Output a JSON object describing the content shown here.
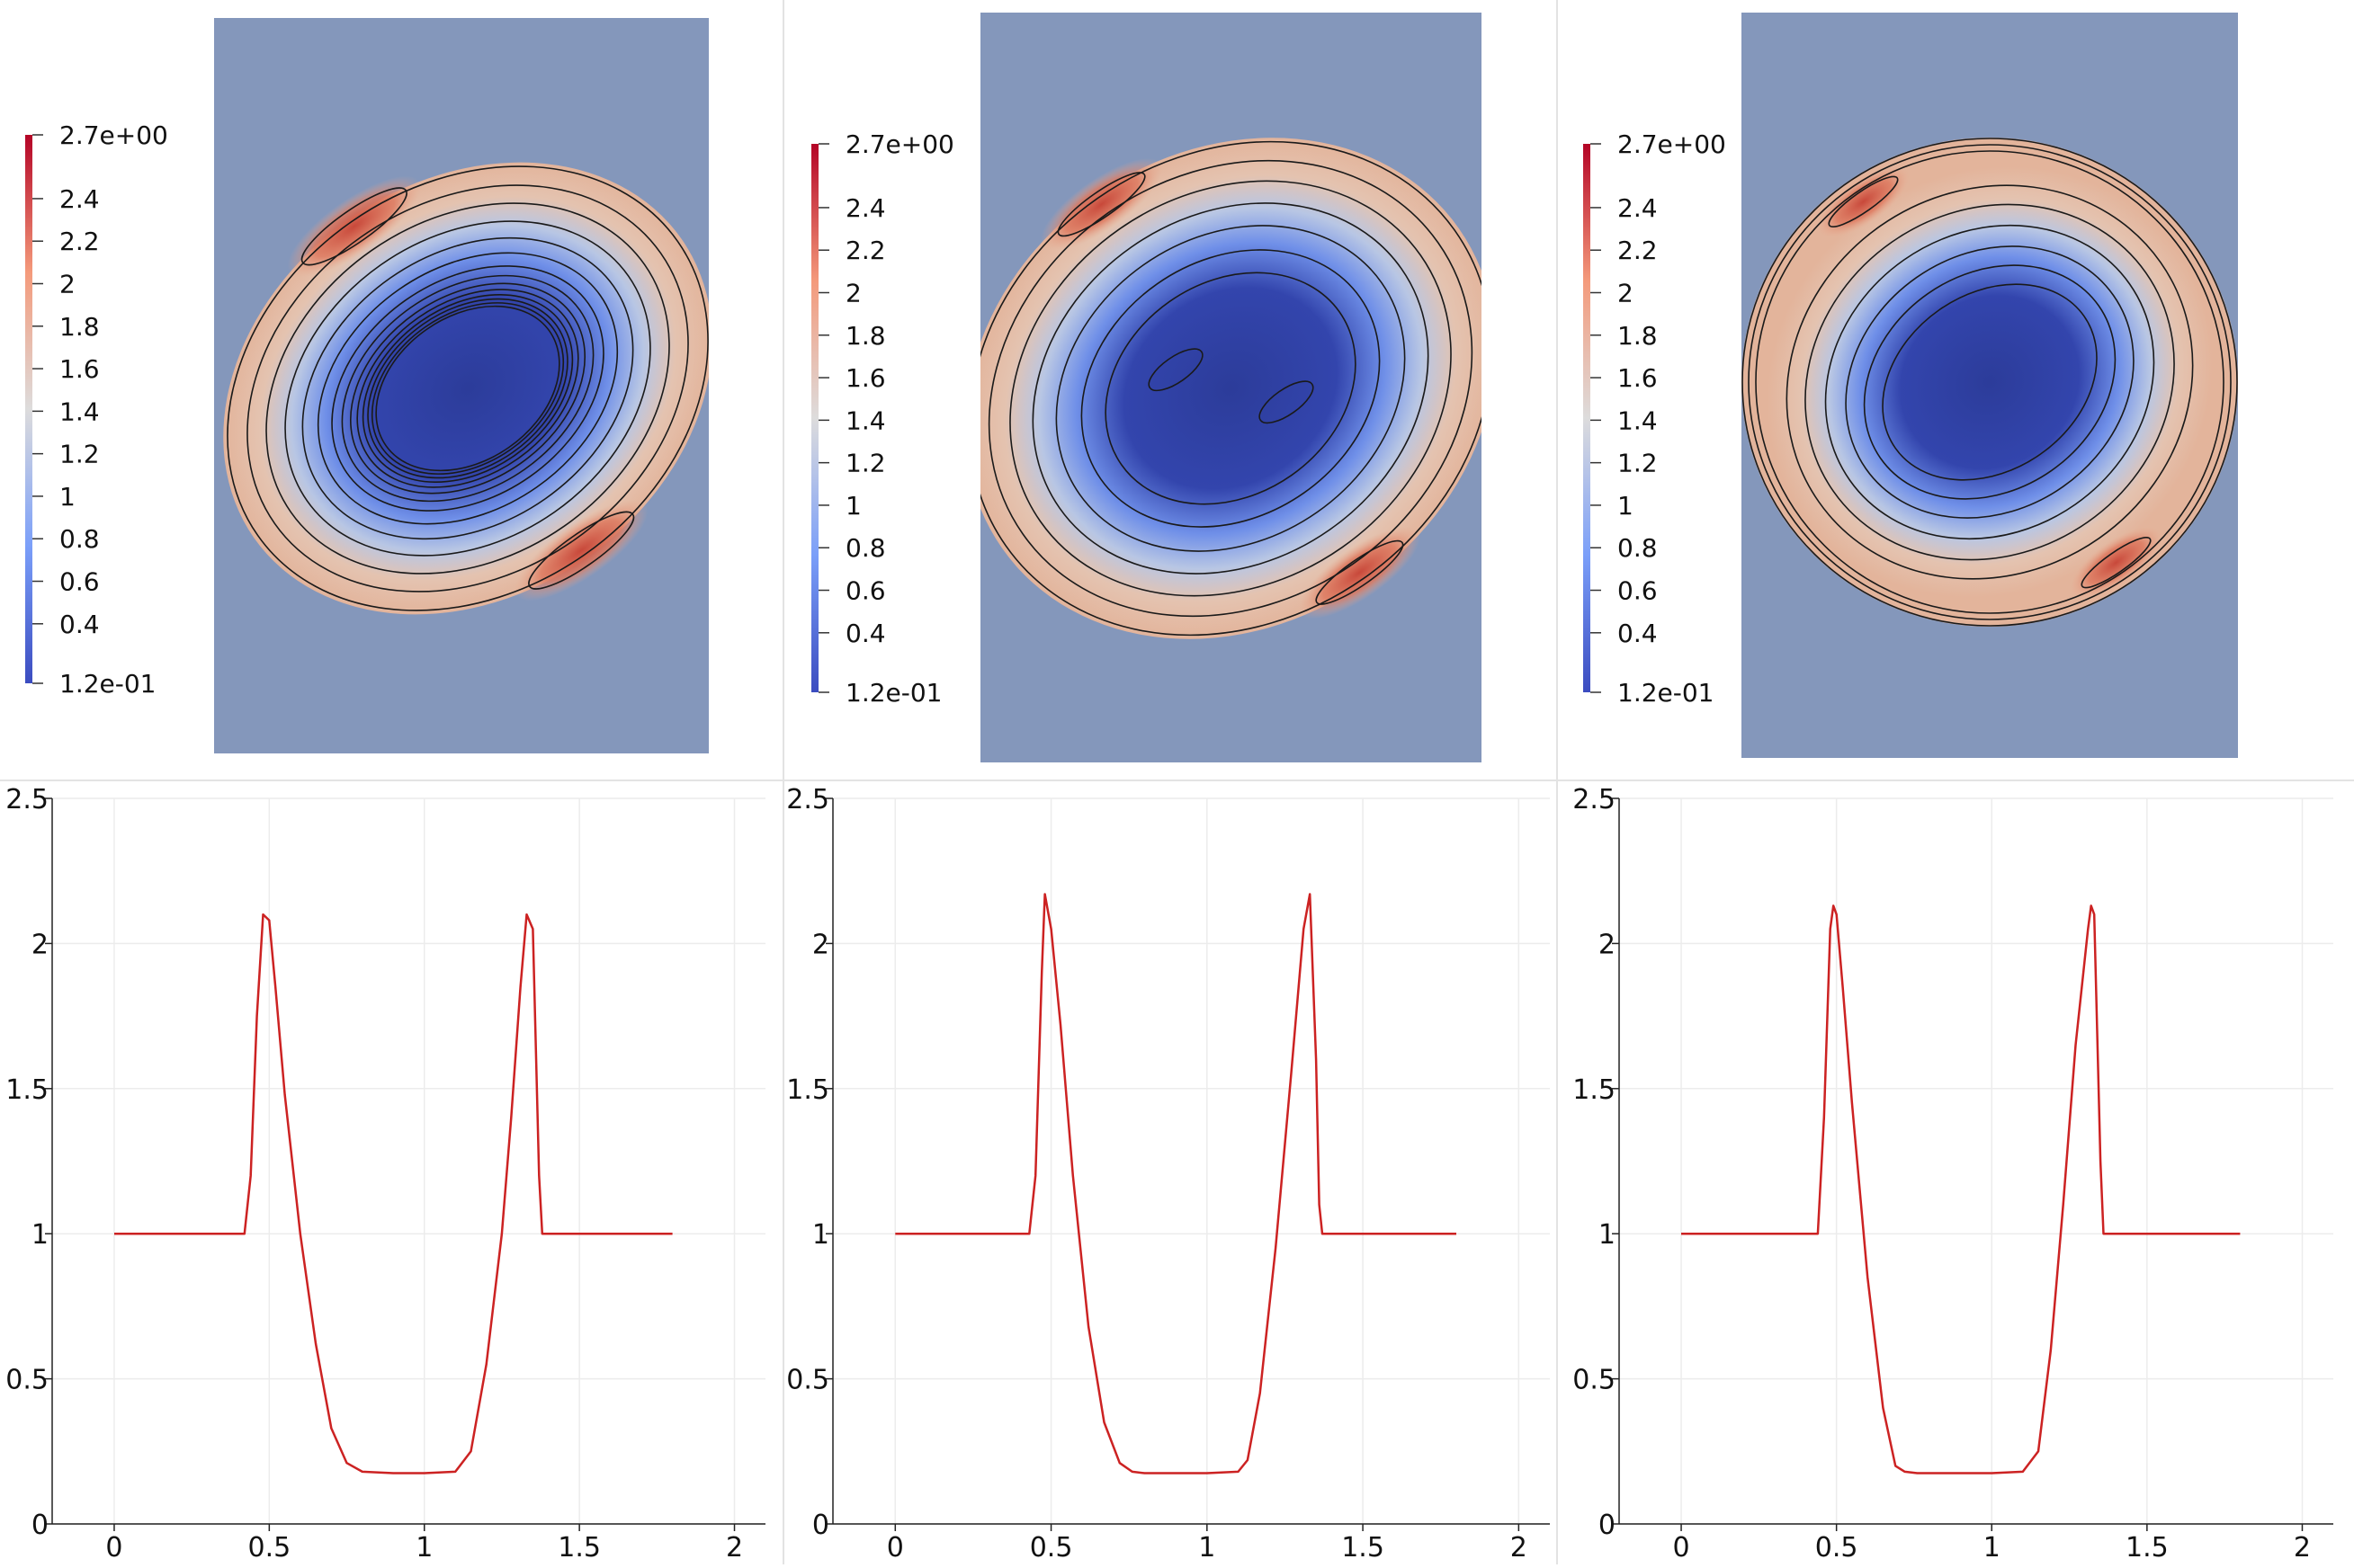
{
  "colorbar": {
    "max_label": "2.7e+00",
    "min_label": "1.2e-01",
    "ticks": [
      "2.4",
      "2.2",
      "2",
      "1.8",
      "1.6",
      "1.4",
      "1.2",
      "1",
      "0.8",
      "0.6",
      "0.4"
    ],
    "tick_values": [
      2.4,
      2.2,
      2.0,
      1.8,
      1.6,
      1.4,
      1.2,
      1.0,
      0.8,
      0.6,
      0.4
    ],
    "range": [
      0.12,
      2.7
    ],
    "colormap": "coolwarm",
    "colors": {
      "low": "#3b4cc0",
      "mid": "#dddddd",
      "high": "#b40426",
      "background": "#8497bb"
    }
  },
  "chart_data": [
    {
      "type": "line",
      "panel": "bottom-left",
      "xlim": [
        -0.2,
        2.1
      ],
      "ylim": [
        0,
        2.5
      ],
      "x_ticks": [
        "0",
        "0.5",
        "1",
        "1.5",
        "2"
      ],
      "y_ticks": [
        "0",
        "0.5",
        "1",
        "1.5",
        "2",
        "2.5"
      ],
      "grid": true,
      "line_color": "#cc2222",
      "series": [
        {
          "x": [
            0.0,
            0.42,
            0.44,
            0.46,
            0.48,
            0.5,
            0.52,
            0.55,
            0.6,
            0.65,
            0.7,
            0.75,
            0.8,
            0.9,
            1.0,
            1.1,
            1.15,
            1.2,
            1.25,
            1.28,
            1.31,
            1.33,
            1.35,
            1.37,
            1.38,
            1.5,
            1.8
          ],
          "y": [
            1.0,
            1.0,
            1.2,
            1.75,
            2.1,
            2.08,
            1.85,
            1.48,
            1.0,
            0.62,
            0.33,
            0.21,
            0.18,
            0.175,
            0.175,
            0.18,
            0.25,
            0.55,
            1.0,
            1.4,
            1.85,
            2.1,
            2.05,
            1.2,
            1.0,
            1.0,
            1.0
          ]
        }
      ]
    },
    {
      "type": "line",
      "panel": "bottom-middle",
      "xlim": [
        -0.2,
        2.1
      ],
      "ylim": [
        0,
        2.5
      ],
      "x_ticks": [
        "0",
        "0.5",
        "1",
        "1.5",
        "2"
      ],
      "y_ticks": [
        "0",
        "0.5",
        "1",
        "1.5",
        "2",
        "2.5"
      ],
      "grid": true,
      "line_color": "#cc2222",
      "series": [
        {
          "x": [
            0.0,
            0.43,
            0.45,
            0.47,
            0.48,
            0.5,
            0.53,
            0.57,
            0.62,
            0.67,
            0.72,
            0.76,
            0.8,
            0.9,
            1.0,
            1.1,
            1.13,
            1.17,
            1.22,
            1.27,
            1.31,
            1.33,
            1.35,
            1.36,
            1.37,
            1.5,
            1.8
          ],
          "y": [
            1.0,
            1.0,
            1.2,
            1.9,
            2.17,
            2.05,
            1.72,
            1.2,
            0.68,
            0.35,
            0.21,
            0.18,
            0.175,
            0.175,
            0.175,
            0.18,
            0.22,
            0.45,
            0.95,
            1.55,
            2.05,
            2.17,
            1.6,
            1.1,
            1.0,
            1.0,
            1.0
          ]
        }
      ]
    },
    {
      "type": "line",
      "panel": "bottom-right",
      "xlim": [
        -0.2,
        2.1
      ],
      "ylim": [
        0,
        2.5
      ],
      "x_ticks": [
        "0",
        "0.5",
        "1",
        "1.5",
        "2"
      ],
      "y_ticks": [
        "0",
        "0.5",
        "1",
        "1.5",
        "2",
        "2.5"
      ],
      "grid": true,
      "line_color": "#cc2222",
      "series": [
        {
          "x": [
            0.0,
            0.44,
            0.46,
            0.48,
            0.49,
            0.5,
            0.52,
            0.55,
            0.6,
            0.65,
            0.69,
            0.72,
            0.76,
            0.9,
            1.0,
            1.1,
            1.15,
            1.19,
            1.23,
            1.27,
            1.31,
            1.32,
            1.33,
            1.35,
            1.36,
            1.5,
            1.8
          ],
          "y": [
            1.0,
            1.0,
            1.4,
            2.05,
            2.13,
            2.1,
            1.85,
            1.45,
            0.85,
            0.4,
            0.2,
            0.18,
            0.175,
            0.175,
            0.175,
            0.18,
            0.25,
            0.6,
            1.1,
            1.65,
            2.05,
            2.13,
            2.1,
            1.25,
            1.0,
            1.0,
            1.0
          ]
        }
      ]
    }
  ]
}
